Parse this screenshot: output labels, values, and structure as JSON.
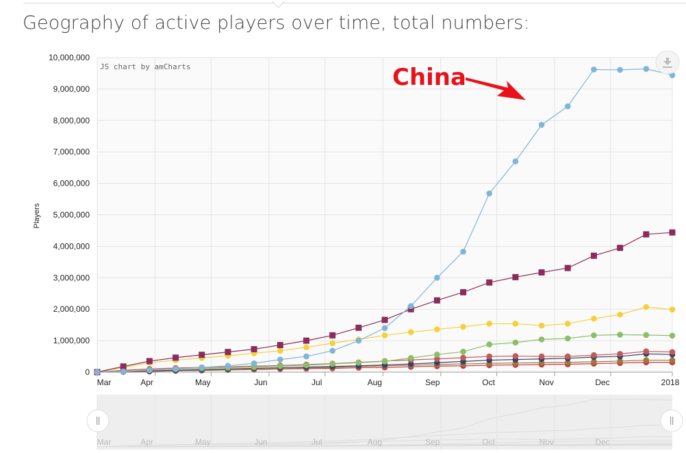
{
  "page": {
    "title": "Geography of active players over time, total numbers:"
  },
  "chart_credit": "JS chart by amCharts",
  "annotation": {
    "label": "China"
  },
  "icons": {
    "export": "download-icon",
    "scroll_handle": "grip-icon"
  },
  "scrollbar": {
    "labels": [
      "Mar",
      "Apr",
      "May",
      "Jun",
      "Jul",
      "Aug",
      "Sep",
      "Oct",
      "Nov",
      "Dec"
    ]
  },
  "chart_data": {
    "type": "line",
    "title": "",
    "xlabel": "",
    "ylabel": "Players",
    "ylim": [
      0,
      10000000
    ],
    "yticks": [
      "0",
      "1,000,000",
      "2,000,000",
      "3,000,000",
      "4,000,000",
      "5,000,000",
      "6,000,000",
      "7,000,000",
      "8,000,000",
      "9,000,000",
      "10,000,000"
    ],
    "xtick_labels": [
      "Mar",
      "Apr",
      "May",
      "Jun",
      "Jul",
      "Aug",
      "Sep",
      "Oct",
      "Nov",
      "Dec",
      "2018"
    ],
    "x": [
      "2017-03-01",
      "2017-03-15",
      "2017-03-29",
      "2017-04-12",
      "2017-04-26",
      "2017-05-10",
      "2017-05-24",
      "2017-06-07",
      "2017-06-21",
      "2017-07-05",
      "2017-07-19",
      "2017-08-02",
      "2017-08-16",
      "2017-08-30",
      "2017-09-13",
      "2017-09-27",
      "2017-10-11",
      "2017-10-25",
      "2017-11-08",
      "2017-11-22",
      "2017-12-06",
      "2017-12-20",
      "2018-01-03"
    ],
    "grid": true,
    "legend": "none",
    "series": [
      {
        "color": "#7fb5d9",
        "marker": "circle",
        "values": [
          0,
          20000,
          60000,
          100000,
          150000,
          200000,
          280000,
          400000,
          500000,
          680000,
          1000000,
          1400000,
          2100000,
          3000000,
          3830000,
          5680000,
          6700000,
          7860000,
          8450000,
          9620000,
          9610000,
          9640000,
          9440000
        ]
      },
      {
        "color": "#8a2d5a",
        "marker": "square",
        "values": [
          0,
          180000,
          350000,
          460000,
          550000,
          640000,
          730000,
          860000,
          1000000,
          1170000,
          1410000,
          1660000,
          2000000,
          2280000,
          2540000,
          2850000,
          3020000,
          3170000,
          3310000,
          3700000,
          3950000,
          4380000,
          4440000
        ]
      },
      {
        "color": "#f3d13c",
        "marker": "circle",
        "values": [
          0,
          150000,
          300000,
          380000,
          450000,
          520000,
          600000,
          680000,
          790000,
          920000,
          1040000,
          1170000,
          1270000,
          1360000,
          1440000,
          1540000,
          1540000,
          1480000,
          1540000,
          1700000,
          1830000,
          2070000,
          1990000
        ]
      },
      {
        "color": "#8cbd68",
        "marker": "circle",
        "values": [
          0,
          30000,
          70000,
          100000,
          120000,
          140000,
          160000,
          190000,
          220000,
          260000,
          300000,
          340000,
          450000,
          560000,
          650000,
          880000,
          940000,
          1040000,
          1070000,
          1170000,
          1190000,
          1180000,
          1160000
        ]
      },
      {
        "color": "#c05b56",
        "marker": "circle",
        "values": [
          0,
          60000,
          100000,
          130000,
          150000,
          170000,
          190000,
          210000,
          240000,
          270000,
          310000,
          350000,
          390000,
          420000,
          460000,
          500000,
          510000,
          500000,
          500000,
          540000,
          580000,
          660000,
          640000
        ]
      },
      {
        "color": "#3b3f6b",
        "marker": "circle",
        "values": [
          0,
          20000,
          40000,
          60000,
          80000,
          100000,
          120000,
          140000,
          160000,
          180000,
          200000,
          230000,
          260000,
          300000,
          340000,
          380000,
          400000,
          420000,
          440000,
          480000,
          500000,
          580000,
          560000
        ]
      },
      {
        "color": "#9c7a3e",
        "marker": "circle",
        "values": [
          0,
          10000,
          30000,
          40000,
          60000,
          70000,
          90000,
          110000,
          130000,
          150000,
          180000,
          200000,
          220000,
          240000,
          260000,
          280000,
          290000,
          300000,
          310000,
          330000,
          350000,
          380000,
          380000
        ]
      },
      {
        "color": "#c8373a",
        "marker": "circle",
        "values": [
          0,
          5000,
          20000,
          40000,
          50000,
          70000,
          80000,
          100000,
          110000,
          120000,
          140000,
          150000,
          170000,
          190000,
          200000,
          220000,
          230000,
          240000,
          250000,
          270000,
          290000,
          310000,
          310000
        ]
      }
    ]
  }
}
